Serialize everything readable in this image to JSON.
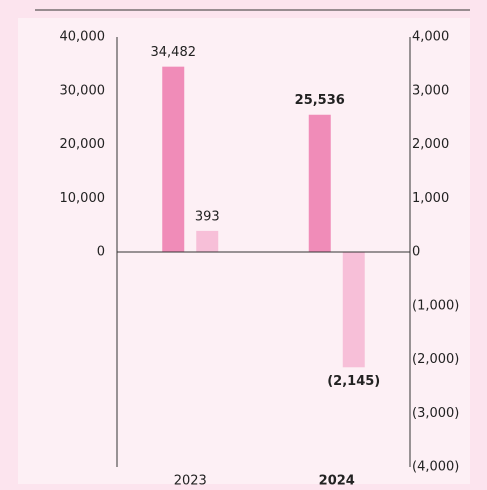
{
  "chart_data": {
    "type": "bar",
    "categories": [
      "2023",
      "2024"
    ],
    "highlight_category_index": 1,
    "series": [
      {
        "color": "#f08cb8",
        "values": [
          34482,
          25536
        ],
        "value_labels": [
          "34,482",
          "25,536"
        ]
      },
      {
        "color": "#f7bfd8",
        "axis": "y2",
        "values": [
          393,
          -2145
        ],
        "value_labels": [
          "393",
          "(2,145)"
        ]
      }
    ],
    "ylim": [
      -40000,
      40000
    ],
    "yticks": [
      0,
      {
        "value": 10000,
        "label": "10,000"
      },
      {
        "value": 20000,
        "label": "20,000"
      },
      {
        "value": 30000,
        "label": "30,000"
      },
      {
        "value": 40000,
        "label": "40,000"
      }
    ],
    "y2lim": [
      -4000,
      4000
    ],
    "y2ticks": [
      {
        "value": -4000,
        "label": "(4,000)"
      },
      {
        "value": -3000,
        "label": "(3,000)"
      },
      {
        "value": -2000,
        "label": "(2,000)"
      },
      {
        "value": -1000,
        "label": "(1,000)"
      },
      0,
      {
        "value": 1000,
        "label": "1,000"
      },
      {
        "value": 2000,
        "label": "2,000"
      },
      {
        "value": 3000,
        "label": "3,000"
      },
      {
        "value": 4000,
        "label": "4,000"
      }
    ]
  }
}
